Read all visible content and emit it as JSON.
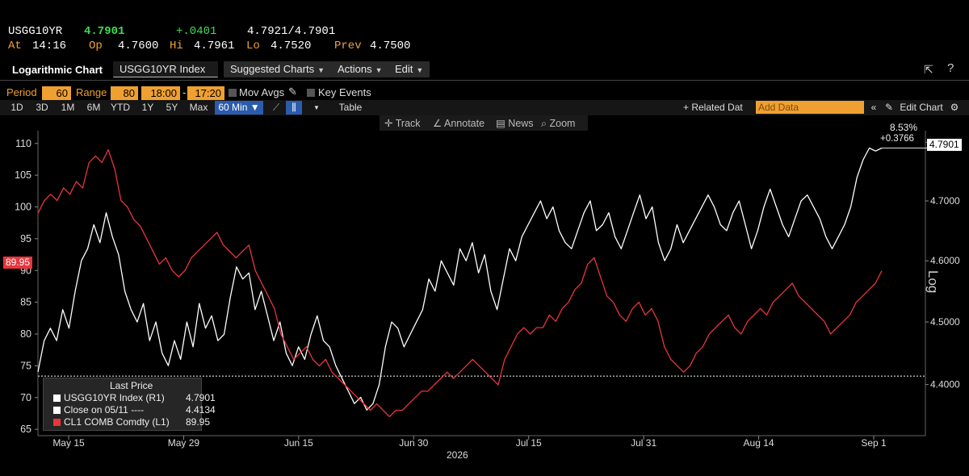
{
  "quote": {
    "ticker": "USGG10YR",
    "last": "4.7901",
    "change": "+.0401",
    "bid_ask": "4.7921/4.7901",
    "at_label": "At",
    "at_time": "14:16",
    "open_label": "Op",
    "open": "4.7600",
    "hi_label": "Hi",
    "hi": "4.7961",
    "lo_label": "Lo",
    "lo": "4.7520",
    "prev_label": "Prev",
    "prev": "4.7500"
  },
  "toolbar": {
    "chart_type": "Logarithmic Chart",
    "security": "USGG10YR Index",
    "suggested": "Suggested Charts",
    "actions": "Actions",
    "edit": "Edit"
  },
  "settings": {
    "period_label": "Period",
    "period": "60",
    "range_label": "Range",
    "range": "80",
    "time_from": "18:00",
    "time_sep": "-",
    "time_to": "17:20",
    "mov_avgs": "Mov Avgs",
    "key_events": "Key Events"
  },
  "ranges": [
    "1D",
    "3D",
    "1M",
    "6M",
    "YTD",
    "1Y",
    "5Y",
    "Max",
    "60 Min ▼"
  ],
  "table_label": "Table",
  "related_data": "+ Related Dat",
  "add_data_placeholder": "Add Data",
  "edit_chart": "Edit Chart",
  "tools": {
    "track": "Track",
    "annotate": "Annotate",
    "news": "News",
    "zoom": "Zoom"
  },
  "chart_data": {
    "type": "line",
    "series": [
      {
        "name": "USGG10YR Index (R1)",
        "axis": "right",
        "color": "#ffffff",
        "last": "4.7901",
        "values": [
          4.42,
          4.47,
          4.49,
          4.47,
          4.52,
          4.49,
          4.55,
          4.6,
          4.62,
          4.66,
          4.63,
          4.68,
          4.64,
          4.61,
          4.55,
          4.52,
          4.5,
          4.53,
          4.47,
          4.5,
          4.45,
          4.43,
          4.47,
          4.44,
          4.5,
          4.46,
          4.53,
          4.49,
          4.51,
          4.47,
          4.48,
          4.54,
          4.59,
          4.57,
          4.58,
          4.52,
          4.55,
          4.51,
          4.47,
          4.5,
          4.45,
          4.43,
          4.46,
          4.44,
          4.48,
          4.51,
          4.47,
          4.46,
          4.43,
          4.41,
          4.39,
          4.37,
          4.38,
          4.36,
          4.37,
          4.4,
          4.46,
          4.5,
          4.49,
          4.46,
          4.48,
          4.5,
          4.52,
          4.57,
          4.55,
          4.6,
          4.58,
          4.56,
          4.62,
          4.6,
          4.63,
          4.58,
          4.61,
          4.55,
          4.52,
          4.57,
          4.62,
          4.6,
          4.64,
          4.66,
          4.68,
          4.7,
          4.67,
          4.69,
          4.65,
          4.63,
          4.62,
          4.65,
          4.68,
          4.7,
          4.65,
          4.66,
          4.68,
          4.64,
          4.62,
          4.65,
          4.68,
          4.71,
          4.67,
          4.69,
          4.63,
          4.6,
          4.62,
          4.66,
          4.63,
          4.65,
          4.67,
          4.69,
          4.71,
          4.69,
          4.66,
          4.65,
          4.68,
          4.7,
          4.66,
          4.62,
          4.65,
          4.69,
          4.72,
          4.69,
          4.66,
          4.64,
          4.67,
          4.7,
          4.71,
          4.69,
          4.67,
          4.64,
          4.62,
          4.64,
          4.66,
          4.69,
          4.74,
          4.77,
          4.79,
          4.785,
          4.7901
        ]
      },
      {
        "name": "CL1 COMB Comdty (L1)",
        "axis": "left",
        "color": "#e8353b",
        "last": "89.95",
        "values": [
          99,
          101,
          102,
          101,
          103,
          102,
          104,
          103,
          107,
          108,
          107,
          109,
          106,
          101,
          100,
          98,
          97,
          95,
          93,
          91,
          92,
          90,
          89,
          90,
          92,
          93,
          94,
          95,
          96,
          94,
          93,
          92,
          93,
          94,
          90,
          88,
          86,
          84,
          80,
          78,
          76,
          77,
          78,
          76,
          75,
          76,
          74,
          73,
          72,
          71,
          70,
          69,
          68,
          69,
          68,
          67,
          68,
          68,
          69,
          70,
          71,
          71,
          72,
          73,
          74,
          73,
          74,
          75,
          76,
          75,
          74,
          73,
          72,
          76,
          78,
          80,
          81,
          80,
          81,
          81,
          83,
          82,
          84,
          85,
          87,
          88,
          91,
          92,
          89,
          86,
          85,
          83,
          82,
          84,
          85,
          83,
          84,
          82,
          78,
          76,
          75,
          74,
          75,
          77,
          78,
          80,
          81,
          82,
          83,
          81,
          80,
          82,
          83,
          84,
          83,
          85,
          86,
          87,
          88,
          86,
          85,
          84,
          83,
          82,
          80,
          81,
          82,
          83,
          85,
          86,
          87,
          88,
          89.95
        ]
      }
    ],
    "close_line": {
      "label": "Close on 05/11",
      "dashes": "----",
      "value": "4.4134"
    },
    "left_axis": {
      "min": 64,
      "max": 112,
      "ticks": [
        "65",
        "70",
        "75",
        "80",
        "85",
        "90",
        "95",
        "100",
        "105",
        "110"
      ]
    },
    "right_axis": {
      "min": 4.32,
      "max": 4.82,
      "ticks": [
        "4.4000",
        "4.5000",
        "4.6000",
        "4.7000",
        "4.8000"
      ],
      "title": "Log",
      "scale": "log"
    },
    "x_ticks": [
      "May 15",
      "May 29",
      "Jun 15",
      "Jun 30",
      "Jul 15",
      "Jul 31",
      "Aug 14",
      "Sep 1"
    ],
    "x_year": "2026",
    "left_tag": "89.95",
    "right_tag": "4.7901",
    "pct_change": "8.53%",
    "abs_change": "+0.3766",
    "legend_title": "Last Price",
    "grid": false
  }
}
